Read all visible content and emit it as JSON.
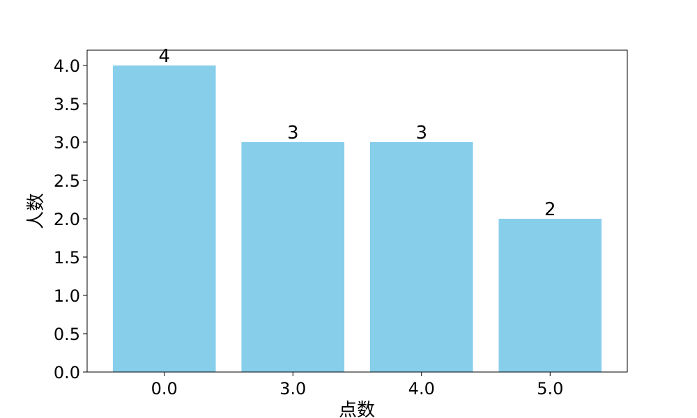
{
  "chart_data": {
    "type": "bar",
    "categories": [
      "0.0",
      "3.0",
      "4.0",
      "5.0"
    ],
    "values": [
      4,
      3,
      3,
      2
    ],
    "data_labels": [
      "4",
      "3",
      "3",
      "2"
    ],
    "xlabel": "点数",
    "ylabel": "人数",
    "ylim": [
      0,
      4.2
    ],
    "yticks": [
      "0.0",
      "0.5",
      "1.0",
      "1.5",
      "2.0",
      "2.5",
      "3.0",
      "3.5",
      "4.0"
    ],
    "grid": false,
    "bar_color": "#87ceeb"
  }
}
